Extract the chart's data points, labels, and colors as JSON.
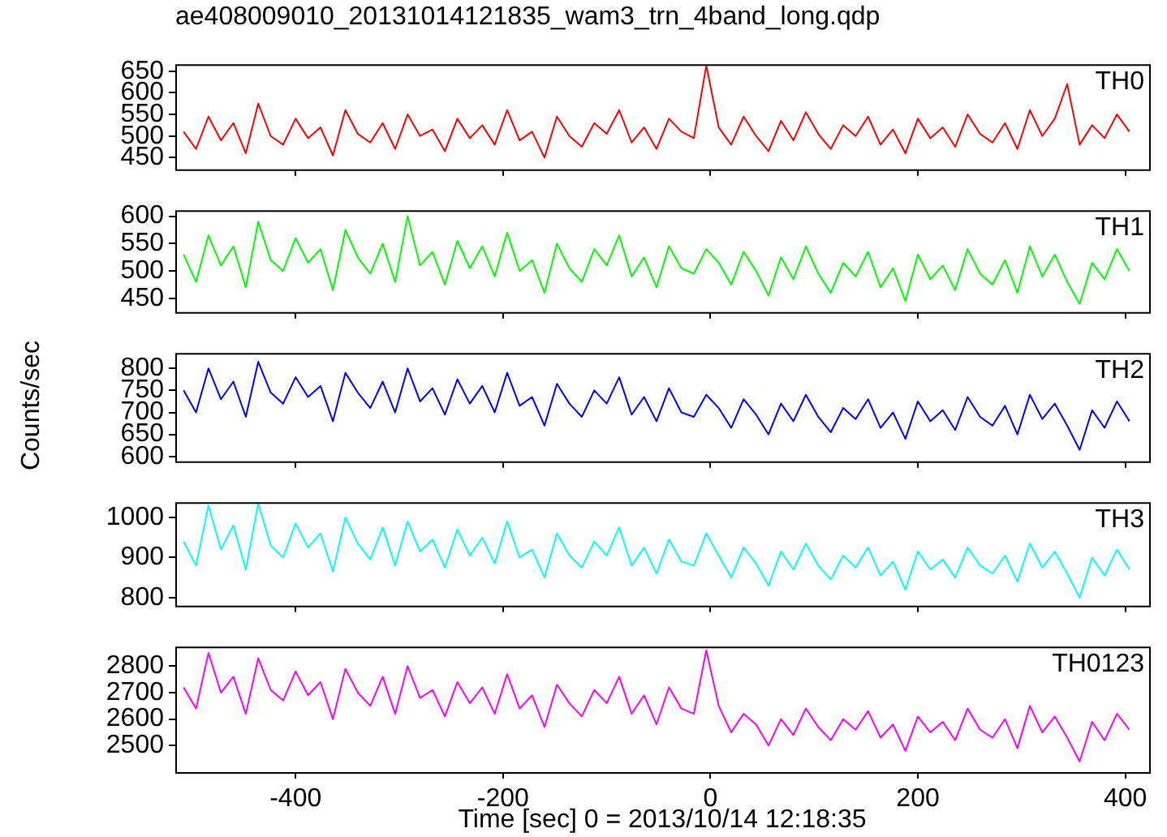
{
  "chart_data": [
    {
      "type": "line",
      "title": "ae408009010_20131014121835_wam3_trn_4band_long.qdp",
      "marker": "none",
      "tick_labels": "y",
      "xlim": [
        -516,
        423
      ],
      "xticks": [
        -400,
        -200,
        0,
        200,
        400
      ],
      "ylim": [
        423,
        666
      ],
      "yticks": [
        450,
        500,
        550,
        600,
        650
      ],
      "x": [
        -508,
        -496,
        -484,
        -472,
        -460,
        -448,
        -436,
        -424,
        -412,
        -400,
        -388,
        -376,
        -364,
        -352,
        -340,
        -328,
        -316,
        -304,
        -292,
        -280,
        -268,
        -256,
        -244,
        -232,
        -220,
        -208,
        -196,
        -184,
        -172,
        -160,
        -148,
        -136,
        -124,
        -112,
        -100,
        -88,
        -76,
        -64,
        -52,
        -40,
        -28,
        -16,
        -4,
        8,
        20,
        32,
        44,
        56,
        68,
        80,
        92,
        104,
        116,
        128,
        140,
        152,
        164,
        176,
        188,
        200,
        212,
        224,
        236,
        248,
        260,
        272,
        284,
        296,
        308,
        320,
        332,
        344,
        356,
        368,
        380,
        392,
        404
      ],
      "series": [
        {
          "name": "TH0",
          "color": "#ff0000",
          "values": [
            510,
            470,
            545,
            490,
            530,
            460,
            575,
            500,
            480,
            540,
            495,
            520,
            455,
            560,
            505,
            485,
            530,
            470,
            550,
            500,
            515,
            465,
            540,
            495,
            525,
            480,
            560,
            490,
            510,
            450,
            545,
            500,
            475,
            530,
            505,
            560,
            485,
            520,
            470,
            540,
            510,
            495,
            663,
            520,
            480,
            545,
            500,
            465,
            535,
            490,
            555,
            505,
            470,
            525,
            500,
            545,
            480,
            515,
            460,
            540,
            495,
            520,
            475,
            550,
            505,
            485,
            530,
            470,
            560,
            500,
            540,
            620,
            480,
            525,
            495,
            550,
            510
          ]
        }
      ]
    },
    {
      "type": "line",
      "marker": "none",
      "tick_labels": "y",
      "xlim": [
        -516,
        423
      ],
      "xticks": [
        -400,
        -200,
        0,
        200,
        400
      ],
      "ylim": [
        425,
        611
      ],
      "yticks": [
        450,
        500,
        550,
        600
      ],
      "x": [
        -508,
        -496,
        -484,
        -472,
        -460,
        -448,
        -436,
        -424,
        -412,
        -400,
        -388,
        -376,
        -364,
        -352,
        -340,
        -328,
        -316,
        -304,
        -292,
        -280,
        -268,
        -256,
        -244,
        -232,
        -220,
        -208,
        -196,
        -184,
        -172,
        -160,
        -148,
        -136,
        -124,
        -112,
        -100,
        -88,
        -76,
        -64,
        -52,
        -40,
        -28,
        -16,
        -4,
        8,
        20,
        32,
        44,
        56,
        68,
        80,
        92,
        104,
        116,
        128,
        140,
        152,
        164,
        176,
        188,
        200,
        212,
        224,
        236,
        248,
        260,
        272,
        284,
        296,
        308,
        320,
        332,
        344,
        356,
        368,
        380,
        392,
        404
      ],
      "series": [
        {
          "name": "TH1",
          "color": "#00ff00",
          "values": [
            530,
            480,
            565,
            510,
            545,
            470,
            590,
            520,
            500,
            560,
            515,
            540,
            465,
            575,
            525,
            495,
            550,
            480,
            600,
            510,
            535,
            475,
            555,
            505,
            545,
            490,
            570,
            500,
            520,
            460,
            550,
            505,
            480,
            540,
            510,
            565,
            490,
            525,
            470,
            545,
            505,
            495,
            540,
            515,
            475,
            535,
            500,
            455,
            525,
            485,
            545,
            495,
            460,
            515,
            490,
            535,
            470,
            505,
            445,
            530,
            485,
            510,
            465,
            540,
            495,
            475,
            520,
            460,
            545,
            490,
            530,
            480,
            440,
            515,
            485,
            540,
            500
          ]
        }
      ]
    },
    {
      "type": "line",
      "ylabel": "Counts/sec",
      "marker": "none",
      "tick_labels": "y",
      "xlim": [
        -516,
        423
      ],
      "xticks": [
        -400,
        -200,
        0,
        200,
        400
      ],
      "ylim": [
        589,
        835
      ],
      "yticks": [
        600,
        650,
        700,
        750,
        800
      ],
      "x": [
        -508,
        -496,
        -484,
        -472,
        -460,
        -448,
        -436,
        -424,
        -412,
        -400,
        -388,
        -376,
        -364,
        -352,
        -340,
        -328,
        -316,
        -304,
        -292,
        -280,
        -268,
        -256,
        -244,
        -232,
        -220,
        -208,
        -196,
        -184,
        -172,
        -160,
        -148,
        -136,
        -124,
        -112,
        -100,
        -88,
        -76,
        -64,
        -52,
        -40,
        -28,
        -16,
        -4,
        8,
        20,
        32,
        44,
        56,
        68,
        80,
        92,
        104,
        116,
        128,
        140,
        152,
        164,
        176,
        188,
        200,
        212,
        224,
        236,
        248,
        260,
        272,
        284,
        296,
        308,
        320,
        332,
        344,
        356,
        368,
        380,
        392,
        404
      ],
      "series": [
        {
          "name": "TH2",
          "color": "#0000ff",
          "values": [
            750,
            700,
            800,
            730,
            770,
            690,
            815,
            745,
            720,
            780,
            735,
            760,
            680,
            790,
            745,
            710,
            770,
            700,
            800,
            725,
            755,
            695,
            775,
            720,
            760,
            700,
            790,
            715,
            735,
            670,
            765,
            720,
            690,
            750,
            720,
            780,
            695,
            735,
            680,
            755,
            700,
            690,
            740,
            710,
            665,
            730,
            695,
            650,
            720,
            680,
            740,
            690,
            655,
            710,
            685,
            730,
            665,
            700,
            640,
            725,
            680,
            705,
            660,
            735,
            690,
            670,
            715,
            650,
            740,
            685,
            720,
            670,
            615,
            705,
            665,
            725,
            680
          ]
        }
      ]
    },
    {
      "type": "line",
      "marker": "none",
      "tick_labels": "y",
      "xlim": [
        -516,
        423
      ],
      "xticks": [
        -400,
        -200,
        0,
        200,
        400
      ],
      "ylim": [
        780,
        1038
      ],
      "yticks": [
        800,
        900,
        1000
      ],
      "x": [
        -508,
        -496,
        -484,
        -472,
        -460,
        -448,
        -436,
        -424,
        -412,
        -400,
        -388,
        -376,
        -364,
        -352,
        -340,
        -328,
        -316,
        -304,
        -292,
        -280,
        -268,
        -256,
        -244,
        -232,
        -220,
        -208,
        -196,
        -184,
        -172,
        -160,
        -148,
        -136,
        -124,
        -112,
        -100,
        -88,
        -76,
        -64,
        -52,
        -40,
        -28,
        -16,
        -4,
        8,
        20,
        32,
        44,
        56,
        68,
        80,
        92,
        104,
        116,
        128,
        140,
        152,
        164,
        176,
        188,
        200,
        212,
        224,
        236,
        248,
        260,
        272,
        284,
        296,
        308,
        320,
        332,
        344,
        356,
        368,
        380,
        392,
        404
      ],
      "series": [
        {
          "name": "TH3",
          "color": "#00ffff",
          "values": [
            940,
            880,
            1030,
            920,
            980,
            870,
            1035,
            930,
            900,
            985,
            925,
            960,
            865,
            1000,
            935,
            895,
            975,
            880,
            990,
            915,
            945,
            875,
            970,
            905,
            950,
            885,
            990,
            900,
            920,
            850,
            960,
            905,
            875,
            940,
            905,
            975,
            880,
            925,
            860,
            945,
            890,
            880,
            960,
            905,
            850,
            925,
            885,
            830,
            915,
            870,
            935,
            880,
            845,
            905,
            875,
            925,
            855,
            890,
            820,
            915,
            870,
            895,
            850,
            925,
            880,
            860,
            905,
            840,
            935,
            875,
            915,
            860,
            800,
            900,
            855,
            920,
            870
          ]
        }
      ]
    },
    {
      "type": "line",
      "xlabel": "Time [sec] 0 = 2013/10/14 12:18:35",
      "marker": "none",
      "xlim": [
        -516,
        423
      ],
      "xticks": [
        -400,
        -200,
        0,
        200,
        400
      ],
      "ylim": [
        2400,
        2874
      ],
      "yticks": [
        2500,
        2600,
        2700,
        2800
      ],
      "x": [
        -508,
        -496,
        -484,
        -472,
        -460,
        -448,
        -436,
        -424,
        -412,
        -400,
        -388,
        -376,
        -364,
        -352,
        -340,
        -328,
        -316,
        -304,
        -292,
        -280,
        -268,
        -256,
        -244,
        -232,
        -220,
        -208,
        -196,
        -184,
        -172,
        -160,
        -148,
        -136,
        -124,
        -112,
        -100,
        -88,
        -76,
        -64,
        -52,
        -40,
        -28,
        -16,
        -4,
        8,
        20,
        32,
        44,
        56,
        68,
        80,
        92,
        104,
        116,
        128,
        140,
        152,
        164,
        176,
        188,
        200,
        212,
        224,
        236,
        248,
        260,
        272,
        284,
        296,
        308,
        320,
        332,
        344,
        356,
        368,
        380,
        392,
        404
      ],
      "series": [
        {
          "name": "TH0123",
          "color": "#ff00ff",
          "values": [
            2720,
            2640,
            2850,
            2700,
            2760,
            2620,
            2830,
            2710,
            2670,
            2780,
            2690,
            2740,
            2600,
            2790,
            2700,
            2650,
            2760,
            2620,
            2800,
            2680,
            2710,
            2610,
            2740,
            2660,
            2720,
            2620,
            2770,
            2640,
            2690,
            2570,
            2730,
            2660,
            2610,
            2710,
            2660,
            2760,
            2620,
            2690,
            2580,
            2720,
            2640,
            2620,
            2860,
            2650,
            2550,
            2620,
            2580,
            2500,
            2600,
            2540,
            2640,
            2570,
            2520,
            2600,
            2560,
            2630,
            2530,
            2580,
            2480,
            2610,
            2550,
            2590,
            2520,
            2640,
            2560,
            2530,
            2600,
            2490,
            2650,
            2550,
            2610,
            2530,
            2440,
            2590,
            2520,
            2620,
            2560
          ]
        }
      ]
    }
  ]
}
